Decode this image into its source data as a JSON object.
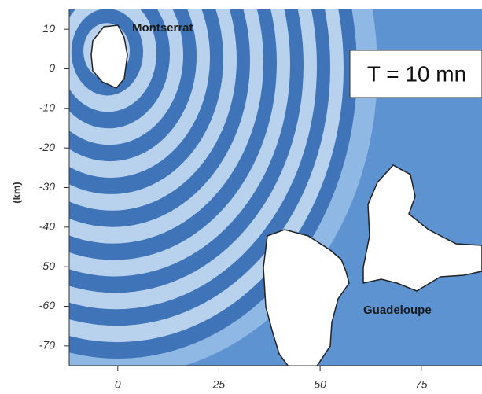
{
  "map": {
    "ylabel": "(km)",
    "xlim": [
      -12,
      90
    ],
    "ylim": [
      -75,
      15
    ],
    "xticks": [
      0,
      25,
      50,
      75
    ],
    "yticks": [
      10,
      0,
      -10,
      -20,
      -30,
      -40,
      -50,
      -60,
      -70
    ],
    "labels": {
      "montserrat": "Montserrat",
      "guadeloupe": "Guadeloupe",
      "time": "T = 10 mn"
    }
  }
}
